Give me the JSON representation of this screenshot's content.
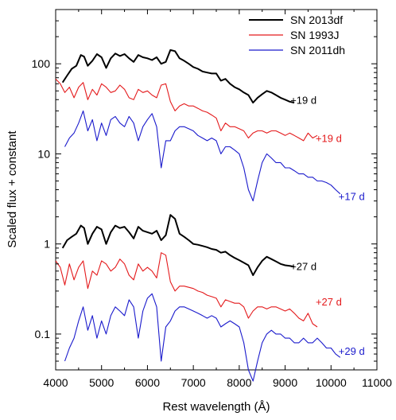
{
  "chart_data": {
    "type": "line",
    "xlabel": "Rest wavelength (Å)",
    "ylabel": "Scaled flux + constant",
    "xlim": [
      4000,
      11000
    ],
    "ylim": [
      0.04,
      400
    ],
    "yscale": "log",
    "xticks": [
      4000,
      5000,
      6000,
      7000,
      8000,
      9000,
      10000,
      11000
    ],
    "xtick_labels": [
      "4000",
      "5000",
      "6000",
      "7000",
      "8000",
      "9000",
      "10000",
      "11000"
    ],
    "yticks": [
      0.1,
      1,
      10,
      100
    ],
    "ytick_labels": [
      "0.1",
      "1",
      "10",
      "100"
    ],
    "legend_position": "top-right",
    "series": [
      {
        "name": "SN 2013df",
        "color": "#000000",
        "x": [
          4150,
          4250,
          4350,
          4450,
          4550,
          4620,
          4700,
          4800,
          4900,
          5000,
          5100,
          5200,
          5300,
          5400,
          5500,
          5600,
          5700,
          5800,
          5900,
          6000,
          6100,
          6200,
          6300,
          6400,
          6500,
          6600,
          6700,
          6800,
          6900,
          7000,
          7100,
          7200,
          7300,
          7400,
          7500,
          7600,
          7700,
          7800,
          7900,
          8000,
          8100,
          8200,
          8300,
          8400,
          8500,
          8600,
          8700,
          8800,
          8900,
          9000,
          9100,
          9200
        ],
        "y": [
          62,
          74,
          88,
          95,
          125,
          120,
          95,
          108,
          128,
          118,
          90,
          115,
          130,
          122,
          128,
          115,
          105,
          125,
          118,
          115,
          110,
          118,
          100,
          105,
          142,
          138,
          115,
          108,
          100,
          92,
          88,
          82,
          80,
          78,
          78,
          65,
          68,
          60,
          55,
          52,
          48,
          45,
          37,
          42,
          46,
          50,
          48,
          45,
          42,
          40,
          38,
          37
        ]
      },
      {
        "name": "SN 1993J",
        "color": "#e41a1c",
        "x": [
          4000,
          4100,
          4200,
          4300,
          4400,
          4500,
          4600,
          4700,
          4800,
          4900,
          5000,
          5100,
          5200,
          5300,
          5400,
          5500,
          5600,
          5700,
          5800,
          5900,
          6000,
          6100,
          6200,
          6300,
          6400,
          6500,
          6600,
          6700,
          6800,
          6900,
          7000,
          7100,
          7200,
          7300,
          7400,
          7500,
          7600,
          7700,
          7800,
          7900,
          8000,
          8100,
          8200,
          8300,
          8400,
          8500,
          8600,
          8700,
          8800,
          8900,
          9000,
          9100,
          9200,
          9300,
          9400,
          9500,
          9600,
          9700
        ],
        "y": [
          68,
          60,
          48,
          55,
          42,
          55,
          62,
          40,
          52,
          45,
          60,
          55,
          48,
          50,
          58,
          52,
          42,
          40,
          52,
          48,
          50,
          45,
          42,
          58,
          60,
          38,
          30,
          34,
          36,
          34,
          34,
          32,
          30,
          29,
          27,
          25,
          18,
          22,
          20,
          20,
          19,
          18,
          15,
          17,
          18,
          18,
          17,
          18,
          18,
          17,
          16,
          17,
          16,
          15,
          14,
          17,
          15,
          16
        ]
      },
      {
        "name": "SN 2011dh",
        "color": "#1a1acc",
        "x": [
          4200,
          4300,
          4400,
          4500,
          4600,
          4700,
          4800,
          4900,
          5000,
          5100,
          5200,
          5300,
          5400,
          5500,
          5600,
          5700,
          5800,
          5900,
          6000,
          6100,
          6200,
          6300,
          6400,
          6500,
          6600,
          6700,
          6800,
          6900,
          7000,
          7100,
          7200,
          7300,
          7400,
          7500,
          7600,
          7700,
          7800,
          7900,
          8000,
          8100,
          8200,
          8300,
          8400,
          8500,
          8600,
          8700,
          8800,
          8900,
          9000,
          9100,
          9200,
          9300,
          9400,
          9500,
          9600,
          9700,
          9800,
          9900,
          10000,
          10100,
          10200
        ],
        "y": [
          12,
          15,
          17,
          22,
          30,
          18,
          24,
          14,
          22,
          16,
          24,
          26,
          22,
          20,
          26,
          22,
          14,
          20,
          24,
          28,
          20,
          7,
          14,
          14,
          18,
          20,
          20,
          19,
          18,
          16,
          15,
          14,
          15,
          14,
          10,
          12,
          12,
          11,
          10,
          7,
          4,
          3,
          5,
          8,
          10,
          9,
          8,
          8,
          7,
          7,
          6.5,
          6,
          6,
          5.5,
          5.5,
          5,
          5,
          4.8,
          4.5,
          4,
          3.6
        ]
      },
      {
        "name": "",
        "color": "#000000",
        "x": [
          4150,
          4250,
          4350,
          4450,
          4550,
          4620,
          4700,
          4800,
          4900,
          5000,
          5100,
          5200,
          5300,
          5400,
          5500,
          5600,
          5700,
          5800,
          5900,
          6000,
          6100,
          6200,
          6300,
          6400,
          6500,
          6600,
          6700,
          6800,
          6900,
          7000,
          7100,
          7200,
          7300,
          7400,
          7500,
          7600,
          7700,
          7800,
          7900,
          8000,
          8100,
          8200,
          8300,
          8400,
          8500,
          8600,
          8700,
          8800,
          8900,
          9000,
          9100,
          9200
        ],
        "y": [
          0.9,
          1.1,
          1.2,
          1.3,
          1.6,
          1.5,
          1.0,
          1.3,
          1.55,
          1.45,
          1.0,
          1.35,
          1.6,
          1.5,
          1.55,
          1.35,
          1.15,
          1.55,
          1.4,
          1.35,
          1.3,
          1.4,
          1.1,
          1.25,
          2.1,
          1.9,
          1.3,
          1.2,
          1.1,
          1.0,
          0.98,
          0.95,
          0.92,
          0.88,
          0.86,
          0.8,
          0.82,
          0.75,
          0.7,
          0.66,
          0.62,
          0.58,
          0.45,
          0.55,
          0.65,
          0.72,
          0.68,
          0.64,
          0.6,
          0.58,
          0.57,
          0.56
        ]
      },
      {
        "name": "",
        "color": "#e41a1c",
        "x": [
          4000,
          4100,
          4200,
          4300,
          4400,
          4500,
          4600,
          4700,
          4800,
          4900,
          5000,
          5100,
          5200,
          5300,
          5400,
          5500,
          5600,
          5700,
          5800,
          5900,
          6000,
          6100,
          6200,
          6300,
          6400,
          6500,
          6600,
          6700,
          6800,
          6900,
          7000,
          7100,
          7200,
          7300,
          7400,
          7500,
          7600,
          7700,
          7800,
          7900,
          8000,
          8100,
          8200,
          8300,
          8400,
          8500,
          8600,
          8700,
          8800,
          8900,
          9000,
          9100,
          9200,
          9300,
          9400,
          9500,
          9600,
          9700
        ],
        "y": [
          0.65,
          0.55,
          0.35,
          0.6,
          0.4,
          0.55,
          0.65,
          0.32,
          0.5,
          0.45,
          0.65,
          0.6,
          0.5,
          0.55,
          0.68,
          0.6,
          0.45,
          0.4,
          0.6,
          0.5,
          0.55,
          0.5,
          0.42,
          0.8,
          0.75,
          0.38,
          0.3,
          0.34,
          0.34,
          0.33,
          0.32,
          0.3,
          0.29,
          0.27,
          0.26,
          0.25,
          0.2,
          0.24,
          0.23,
          0.22,
          0.22,
          0.2,
          0.15,
          0.18,
          0.2,
          0.2,
          0.19,
          0.2,
          0.2,
          0.19,
          0.18,
          0.19,
          0.17,
          0.15,
          0.14,
          0.17,
          0.13,
          0.12
        ]
      },
      {
        "name": "",
        "color": "#1a1acc",
        "x": [
          4200,
          4300,
          4400,
          4500,
          4600,
          4700,
          4800,
          4900,
          5000,
          5100,
          5200,
          5300,
          5400,
          5500,
          5600,
          5700,
          5800,
          5900,
          6000,
          6100,
          6200,
          6300,
          6400,
          6500,
          6600,
          6700,
          6800,
          6900,
          7000,
          7100,
          7200,
          7300,
          7400,
          7500,
          7600,
          7700,
          7800,
          7900,
          8000,
          8100,
          8200,
          8300,
          8400,
          8500,
          8600,
          8700,
          8800,
          8900,
          9000,
          9100,
          9200,
          9300,
          9400,
          9500,
          9600,
          9700,
          9800,
          9900,
          10000,
          10100,
          10200
        ],
        "y": [
          0.05,
          0.07,
          0.09,
          0.14,
          0.2,
          0.11,
          0.16,
          0.09,
          0.14,
          0.1,
          0.16,
          0.2,
          0.18,
          0.16,
          0.24,
          0.2,
          0.09,
          0.18,
          0.25,
          0.28,
          0.2,
          0.05,
          0.12,
          0.14,
          0.18,
          0.2,
          0.2,
          0.19,
          0.18,
          0.17,
          0.16,
          0.15,
          0.16,
          0.15,
          0.12,
          0.13,
          0.14,
          0.13,
          0.12,
          0.08,
          0.04,
          0.03,
          0.05,
          0.08,
          0.1,
          0.11,
          0.1,
          0.1,
          0.09,
          0.09,
          0.08,
          0.08,
          0.09,
          0.08,
          0.08,
          0.09,
          0.08,
          0.07,
          0.07,
          0.06,
          0.055
        ]
      }
    ],
    "annotations": [
      {
        "text": "+19 d",
        "x": 9400,
        "y": 40,
        "color": "#000000"
      },
      {
        "text": "+19 d",
        "x": 9950,
        "y": 15,
        "color": "#e41a1c"
      },
      {
        "text": "+17 d",
        "x": 10450,
        "y": 3.4,
        "color": "#1a1acc"
      },
      {
        "text": "+27 d",
        "x": 9400,
        "y": 0.57,
        "color": "#000000"
      },
      {
        "text": "+27 d",
        "x": 9950,
        "y": 0.23,
        "color": "#e41a1c"
      },
      {
        "text": "+29 d",
        "x": 10450,
        "y": 0.065,
        "color": "#1a1acc"
      }
    ]
  }
}
